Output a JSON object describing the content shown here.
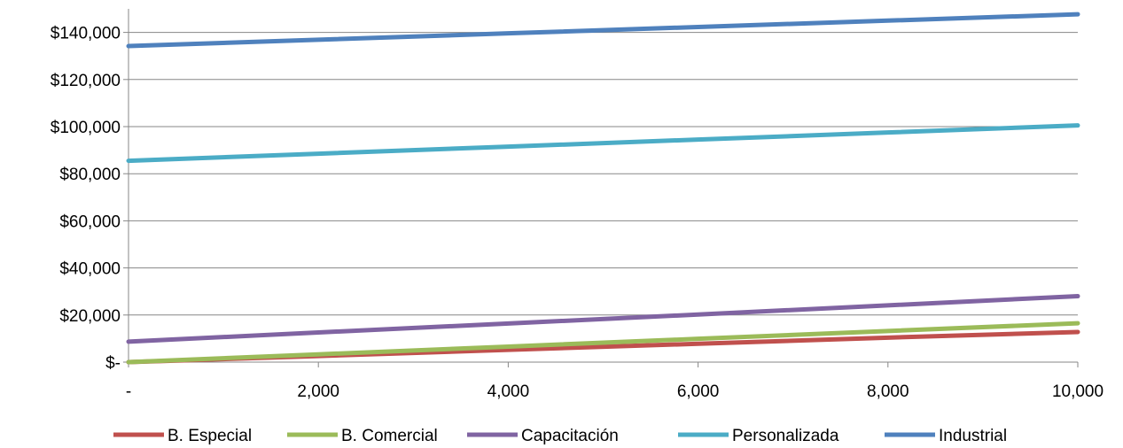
{
  "chart_data": {
    "type": "line",
    "title": "",
    "xlabel": "",
    "ylabel": "",
    "x": [
      0,
      2000,
      4000,
      6000,
      8000,
      10000
    ],
    "x_tick_labels": [
      "-",
      "2,000",
      "4,000",
      "6,000",
      "8,000",
      "10,000"
    ],
    "xlim": [
      0,
      10000
    ],
    "y_ticks": [
      0,
      20000,
      40000,
      60000,
      80000,
      100000,
      120000,
      140000
    ],
    "y_tick_labels": [
      "$-",
      "$20,000",
      "$40,000",
      "$60,000",
      "$80,000",
      "$100,000",
      "$120,000",
      "$140,000"
    ],
    "ylim": [
      0,
      150000
    ],
    "grid": "horizontal",
    "legend_position": "bottom",
    "series": [
      {
        "name": "B. Especial",
        "color": "#C0504D",
        "values": [
          0,
          2600,
          5200,
          7800,
          10400,
          12800
        ]
      },
      {
        "name": "B. Comercial",
        "color": "#9BBB59",
        "values": [
          0,
          3300,
          6600,
          9900,
          13200,
          16500
        ]
      },
      {
        "name": "Capacitación",
        "color": "#8064A2",
        "values": [
          8700,
          12600,
          16400,
          20200,
          24100,
          28000
        ]
      },
      {
        "name": "Personalizada",
        "color": "#4BACC6",
        "values": [
          85500,
          88500,
          91500,
          94500,
          97500,
          100500
        ]
      },
      {
        "name": "Industrial",
        "color": "#4F81BD",
        "values": [
          134200,
          136900,
          139600,
          142300,
          145000,
          147700
        ]
      }
    ]
  }
}
